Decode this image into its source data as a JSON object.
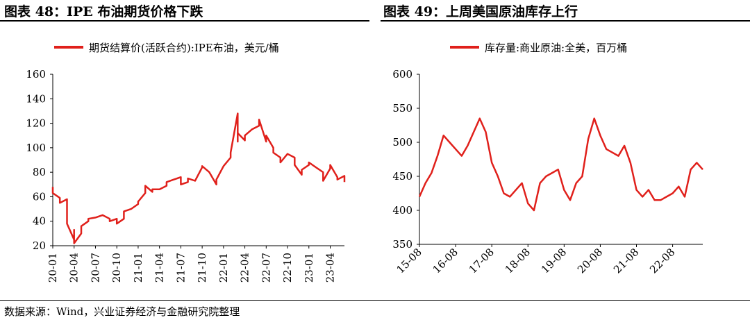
{
  "figures": [
    {
      "title": "图表 48：IPE 布油期货价格下跌"
    },
    {
      "title": "图表 49：上周美国原油库存上行"
    }
  ],
  "footer": {
    "source": "数据来源：Wind，兴业证券经济与金融研究院整理"
  },
  "colors": {
    "series": "#E0201B",
    "axis": "#000000"
  },
  "chart_data": [
    {
      "type": "line",
      "title": "",
      "legend": {
        "placement": "top",
        "entries": [
          "期货结算价(活跃合约):IPE布油，美元/桶"
        ]
      },
      "xlabel": "",
      "ylabel": "",
      "ylim": [
        20,
        160
      ],
      "yticks": [
        "20",
        "40",
        "60",
        "80",
        "100",
        "120",
        "140",
        "160"
      ],
      "xticks": [
        "20-01",
        "20-04",
        "20-07",
        "20-10",
        "21-01",
        "21-04",
        "21-07",
        "21-10",
        "22-01",
        "22-04",
        "22-07",
        "22-10",
        "23-01",
        "23-04"
      ],
      "grid": false,
      "series": [
        {
          "name": "期货结算价(活跃合约):IPE布油，美元/桶",
          "x": [
            "20-01",
            "20-01",
            "20-02",
            "20-02",
            "20-03",
            "20-03",
            "20-04",
            "20-04",
            "20-04",
            "20-05",
            "20-05",
            "20-06",
            "20-06",
            "20-07",
            "20-08",
            "20-08",
            "20-09",
            "20-09",
            "20-10",
            "20-10",
            "20-11",
            "20-11",
            "20-12",
            "21-01",
            "21-01",
            "21-02",
            "21-02",
            "21-03",
            "21-03",
            "21-04",
            "21-05",
            "21-05",
            "21-06",
            "21-07",
            "21-07",
            "21-08",
            "21-08",
            "21-09",
            "21-10",
            "21-10",
            "21-11",
            "21-12",
            "21-12",
            "22-01",
            "22-02",
            "22-02",
            "22-03",
            "22-03",
            "22-03",
            "22-04",
            "22-04",
            "22-05",
            "22-06",
            "22-06",
            "22-07",
            "22-07",
            "22-08",
            "22-08",
            "22-09",
            "22-09",
            "22-10",
            "22-11",
            "22-11",
            "22-12",
            "22-12",
            "23-01",
            "23-01",
            "23-02",
            "23-03",
            "23-03",
            "23-04",
            "23-04",
            "23-05",
            "23-05",
            "23-06",
            "23-06"
          ],
          "values": [
            68,
            63,
            59,
            55,
            58,
            38,
            25,
            33,
            22,
            30,
            36,
            40,
            42,
            43,
            45,
            45,
            42,
            40,
            42,
            38,
            42,
            48,
            50,
            54,
            56,
            63,
            69,
            64,
            66,
            66,
            69,
            72,
            74,
            76,
            70,
            72,
            75,
            73,
            84,
            85,
            80,
            70,
            74,
            85,
            92,
            96,
            128,
            105,
            112,
            106,
            110,
            115,
            118,
            123,
            105,
            110,
            100,
            96,
            92,
            88,
            95,
            92,
            86,
            78,
            82,
            86,
            88,
            84,
            80,
            73,
            83,
            86,
            76,
            74,
            77,
            72
          ]
        }
      ]
    },
    {
      "type": "line",
      "title": "",
      "legend": {
        "placement": "top",
        "entries": [
          "库存量:商业原油:全美，百万桶"
        ]
      },
      "xlabel": "",
      "ylabel": "",
      "ylim": [
        350,
        600
      ],
      "yticks": [
        "350",
        "400",
        "450",
        "500",
        "550",
        "600"
      ],
      "xticks": [
        "15-08",
        "16-08",
        "17-08",
        "18-08",
        "19-08",
        "20-08",
        "21-08",
        "22-08"
      ],
      "grid": false,
      "series": [
        {
          "name": "库存量:商业原油:全美，百万桶",
          "x": [
            "15-08",
            "15-10",
            "15-12",
            "16-02",
            "16-04",
            "16-06",
            "16-08",
            "16-10",
            "16-12",
            "17-02",
            "17-04",
            "17-06",
            "17-08",
            "17-10",
            "17-12",
            "18-02",
            "18-04",
            "18-06",
            "18-08",
            "18-10",
            "18-12",
            "19-02",
            "19-04",
            "19-06",
            "19-08",
            "19-10",
            "19-12",
            "20-02",
            "20-04",
            "20-06",
            "20-08",
            "20-10",
            "20-12",
            "21-02",
            "21-04",
            "21-06",
            "21-08",
            "21-10",
            "21-12",
            "22-02",
            "22-04",
            "22-06",
            "22-08",
            "22-10",
            "22-12",
            "23-02",
            "23-04",
            "23-06"
          ],
          "values": [
            420,
            440,
            455,
            480,
            510,
            500,
            490,
            480,
            495,
            515,
            535,
            515,
            470,
            450,
            425,
            420,
            430,
            440,
            410,
            400,
            440,
            450,
            455,
            460,
            430,
            415,
            440,
            450,
            505,
            535,
            510,
            490,
            485,
            480,
            495,
            470,
            430,
            420,
            430,
            415,
            415,
            420,
            425,
            435,
            420,
            460,
            470,
            460
          ]
        }
      ]
    }
  ]
}
